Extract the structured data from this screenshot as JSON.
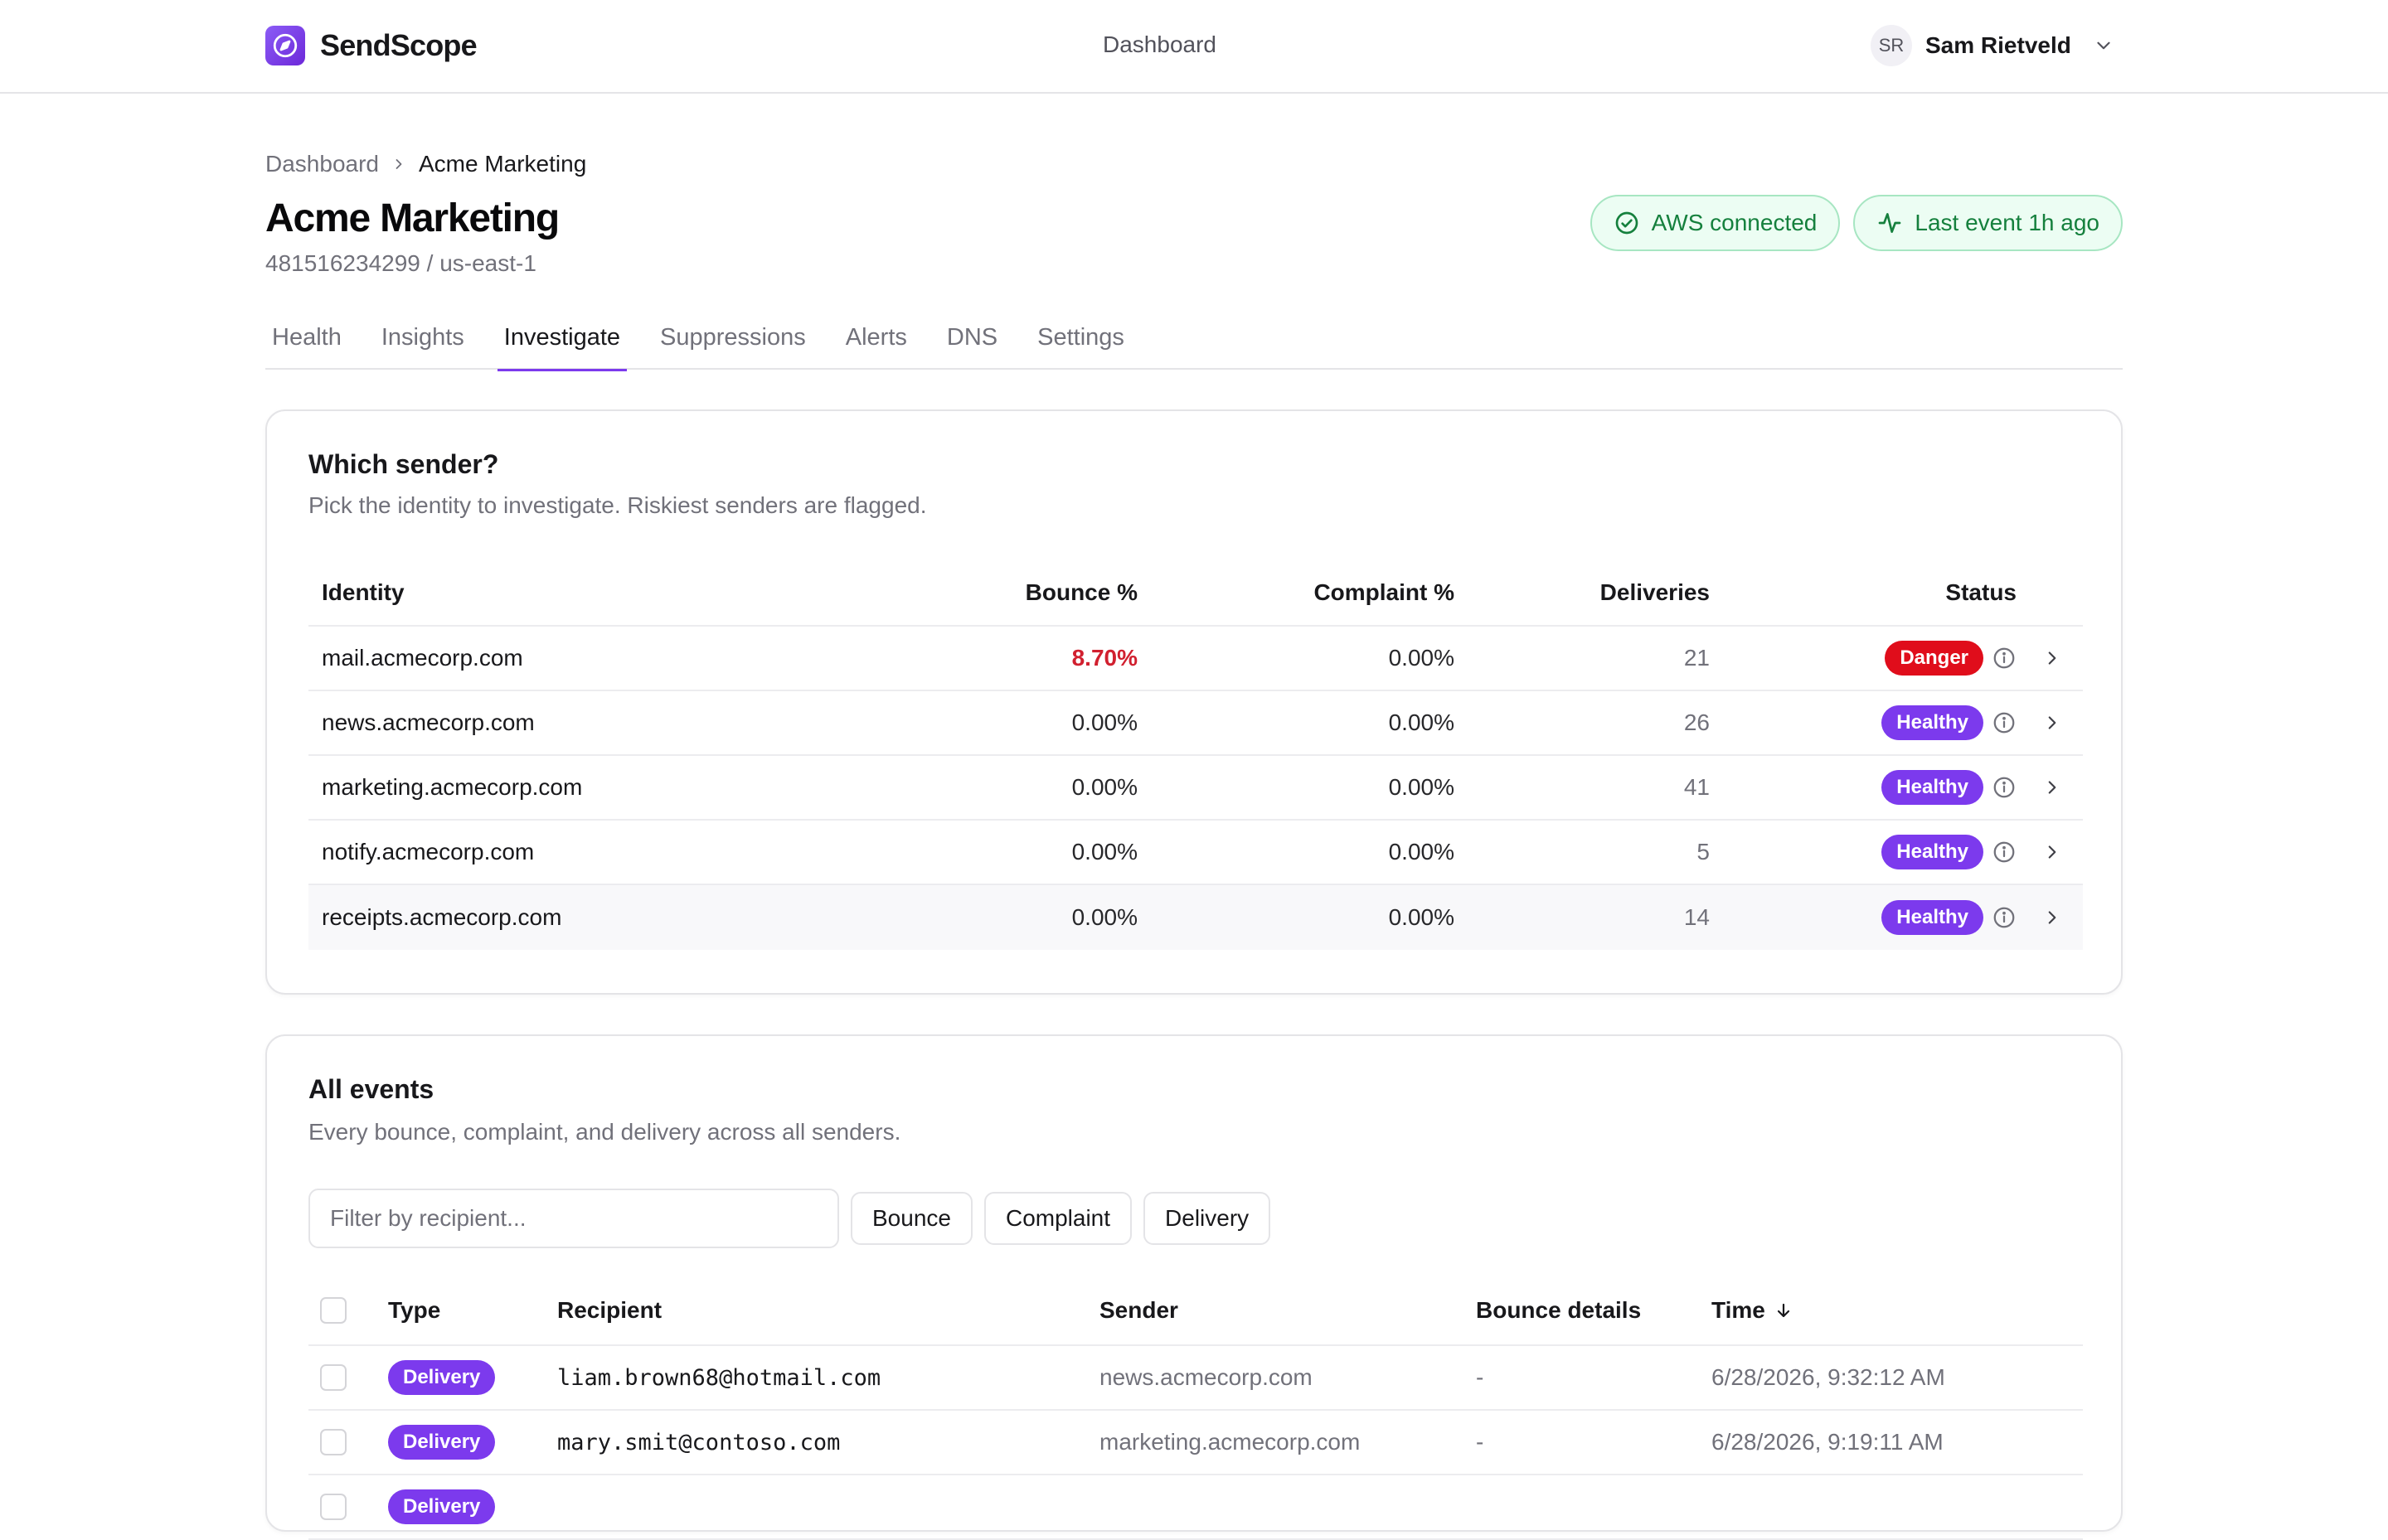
{
  "app": {
    "name": "SendScope",
    "nav_center": "Dashboard"
  },
  "user": {
    "initials": "SR",
    "name": "Sam Rietveld"
  },
  "breadcrumb": {
    "parent": "Dashboard",
    "current": "Acme Marketing"
  },
  "page": {
    "title": "Acme Marketing",
    "subtitle": "481516234299 / us-east-1"
  },
  "badges": {
    "aws": "AWS connected",
    "last_event": "Last event 1h ago"
  },
  "tabs": [
    {
      "label": "Health"
    },
    {
      "label": "Insights"
    },
    {
      "label": "Investigate",
      "active": true
    },
    {
      "label": "Suppressions"
    },
    {
      "label": "Alerts"
    },
    {
      "label": "DNS"
    },
    {
      "label": "Settings"
    }
  ],
  "senders": {
    "title": "Which sender?",
    "description": "Pick the identity to investigate. Riskiest senders are flagged.",
    "columns": {
      "identity": "Identity",
      "bounce": "Bounce %",
      "complaint": "Complaint %",
      "deliveries": "Deliveries",
      "status": "Status"
    },
    "rows": [
      {
        "identity": "mail.acmecorp.com",
        "bounce": "8.70%",
        "complaint": "0.00%",
        "deliveries": "21",
        "status": "Danger"
      },
      {
        "identity": "news.acmecorp.com",
        "bounce": "0.00%",
        "complaint": "0.00%",
        "deliveries": "26",
        "status": "Healthy"
      },
      {
        "identity": "marketing.acmecorp.com",
        "bounce": "0.00%",
        "complaint": "0.00%",
        "deliveries": "41",
        "status": "Healthy"
      },
      {
        "identity": "notify.acmecorp.com",
        "bounce": "0.00%",
        "complaint": "0.00%",
        "deliveries": "5",
        "status": "Healthy"
      },
      {
        "identity": "receipts.acmecorp.com",
        "bounce": "0.00%",
        "complaint": "0.00%",
        "deliveries": "14",
        "status": "Healthy"
      }
    ]
  },
  "events": {
    "title": "All events",
    "description": "Every bounce, complaint, and delivery across all senders.",
    "filter_placeholder": "Filter by recipient...",
    "filter_buttons": [
      "Bounce",
      "Complaint",
      "Delivery"
    ],
    "columns": {
      "type": "Type",
      "recipient": "Recipient",
      "sender": "Sender",
      "bounce_details": "Bounce details",
      "time": "Time"
    },
    "rows": [
      {
        "type": "Delivery",
        "recipient": "liam.brown68@hotmail.com",
        "sender": "news.acmecorp.com",
        "bounce_details": "-",
        "time": "6/28/2026, 9:32:12 AM"
      },
      {
        "type": "Delivery",
        "recipient": "mary.smit@contoso.com",
        "sender": "marketing.acmecorp.com",
        "bounce_details": "-",
        "time": "6/28/2026, 9:19:11 AM"
      },
      {
        "type": "Delivery",
        "recipient": "",
        "sender": "",
        "bounce_details": "",
        "time": ""
      }
    ]
  },
  "colors": {
    "accent": "#7c3aed",
    "danger": "#e00d1b",
    "success": "#15803d"
  }
}
